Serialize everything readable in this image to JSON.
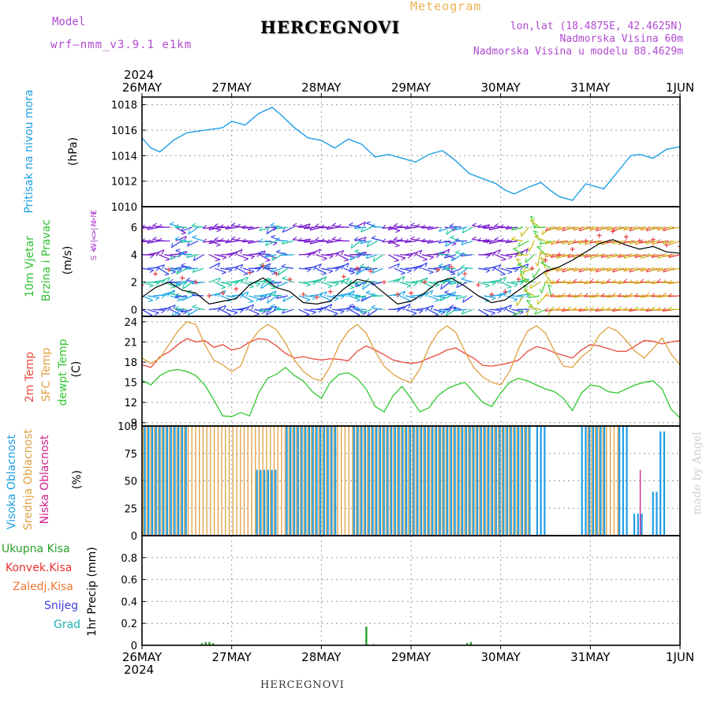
{
  "header": {
    "model_label": "Model",
    "model_name": "wrf–nmm_v3.9.1 e1km",
    "title": "HERCEGNOVI",
    "meteogram": "Meteogram",
    "lonlat": "lon,lat (18.4875E, 42.4625N)",
    "altitude": "Nadmorska Visina 60m",
    "model_altitude": "Nadmorska Visina u modelu 88.4629m"
  },
  "footer": {
    "station": "HERCEGNOVI",
    "credit": "made by Angel"
  },
  "time_axis": {
    "year": "2024",
    "days": [
      "26MAY",
      "27MAY",
      "28MAY",
      "29MAY",
      "30MAY",
      "31MAY",
      "1JUN"
    ]
  },
  "colors": {
    "pressure": "#1e9ee6",
    "wind_speed_line": "#000000",
    "gust_marks": "#e84040",
    "temp2m": "#e84a3c",
    "sfc_temp": "#e0a040",
    "dewpoint": "#30c830",
    "cloud_high": "#1e9ee6",
    "cloud_mid": "#e0a040",
    "cloud_low": "#d0208a",
    "precip_total": "#2aa02a",
    "precip_conv": "#e83030",
    "precip_frozen": "#f07830",
    "precip_snow": "#4040e0",
    "precip_graupel": "#20b0b0"
  },
  "chart_data": [
    {
      "type": "line",
      "panel": "pressure",
      "ylabel": "Pritisak na nivou mora",
      "unit": "(hPa)",
      "ylim": [
        1010,
        1018.6
      ],
      "yticks": [
        1010,
        1012,
        1014,
        1016,
        1018
      ],
      "grid": true,
      "x_days": [
        0,
        0.1,
        0.2,
        0.35,
        0.5,
        0.7,
        0.9,
        1.0,
        1.15,
        1.3,
        1.45,
        1.55,
        1.7,
        1.85,
        2.0,
        2.15,
        2.3,
        2.45,
        2.6,
        2.75,
        2.9,
        3.05,
        3.2,
        3.35,
        3.5,
        3.65,
        3.8,
        3.95,
        4.05,
        4.15,
        4.3,
        4.45,
        4.55,
        4.65,
        4.8,
        4.95,
        5.05,
        5.15,
        5.3,
        5.45,
        5.55,
        5.7,
        5.85,
        6.0
      ],
      "series": [
        {
          "values": [
            1015.4,
            1014.6,
            1014.3,
            1015.2,
            1015.8,
            1016.0,
            1016.2,
            1016.7,
            1016.4,
            1017.3,
            1017.8,
            1017.2,
            1016.2,
            1015.4,
            1015.2,
            1014.6,
            1015.3,
            1014.9,
            1013.9,
            1014.1,
            1013.8,
            1013.5,
            1014.1,
            1014.4,
            1013.6,
            1012.6,
            1012.2,
            1011.8,
            1011.3,
            1011.0,
            1011.5,
            1011.9,
            1011.3,
            1010.8,
            1010.5,
            1011.8,
            1011.6,
            1011.4,
            1012.7,
            1014.0,
            1014.1,
            1013.8,
            1014.5,
            1014.7
          ]
        }
      ]
    },
    {
      "type": "line",
      "panel": "wind",
      "ylabel_lines": [
        "10m Vjetar",
        "Brzina i Pravac"
      ],
      "unit": "(m/s)",
      "compass_lines": [
        "N",
        "W <–|–> E",
        "S <–|–> N"
      ],
      "ylim": [
        -0.5,
        7.5
      ],
      "yticks": [
        0,
        2,
        4,
        6
      ],
      "grid": true,
      "x_days": [
        0,
        0.15,
        0.3,
        0.45,
        0.6,
        0.75,
        0.9,
        1.05,
        1.2,
        1.35,
        1.5,
        1.65,
        1.8,
        1.95,
        2.1,
        2.25,
        2.4,
        2.55,
        2.7,
        2.85,
        3.0,
        3.15,
        3.3,
        3.45,
        3.6,
        3.75,
        3.9,
        4.05,
        4.2,
        4.35,
        4.5,
        4.65,
        4.8,
        4.95,
        5.1,
        5.25,
        5.4,
        5.55,
        5.7,
        5.85,
        6.0
      ],
      "series": [
        {
          "values": [
            0.9,
            1.6,
            2.0,
            1.4,
            1.2,
            0.4,
            0.6,
            0.8,
            1.8,
            2.3,
            1.6,
            1.3,
            0.5,
            0.4,
            0.6,
            1.5,
            2.2,
            2.0,
            1.2,
            0.4,
            0.6,
            1.2,
            2.0,
            2.3,
            1.7,
            1.0,
            0.5,
            0.7,
            1.4,
            2.1,
            2.8,
            3.1,
            3.6,
            4.2,
            4.8,
            5.1,
            4.7,
            4.4,
            4.6,
            4.2,
            4.1
          ]
        },
        {
          "values": [
            1.8,
            2.6,
            2.9,
            2.3,
            2.0,
            1.0,
            1.2,
            1.5,
            2.7,
            3.2,
            2.6,
            2.2,
            1.1,
            0.9,
            1.3,
            2.4,
            3.0,
            2.8,
            2.0,
            1.1,
            1.2,
            2.0,
            2.9,
            3.1,
            2.6,
            1.8,
            1.1,
            1.3,
            2.2,
            3.0,
            3.6,
            4.0,
            4.4,
            5.0,
            5.4,
            5.7,
            5.3,
            5.0,
            5.1,
            4.7,
            4.6
          ]
        }
      ]
    },
    {
      "type": "line",
      "panel": "temperature",
      "ylabel_lines": [
        "2m Temp",
        "SFC Temp",
        "dewpt Temp"
      ],
      "unit": "(C)",
      "ylim": [
        8.5,
        24.8
      ],
      "yticks": [
        9,
        12,
        15,
        18,
        21,
        24
      ],
      "grid": true,
      "x_days": [
        0,
        0.1,
        0.2,
        0.3,
        0.4,
        0.5,
        0.6,
        0.7,
        0.8,
        0.9,
        1.0,
        1.1,
        1.2,
        1.3,
        1.4,
        1.5,
        1.6,
        1.7,
        1.8,
        1.9,
        2.0,
        2.1,
        2.2,
        2.3,
        2.4,
        2.5,
        2.6,
        2.7,
        2.8,
        2.9,
        3.0,
        3.1,
        3.2,
        3.3,
        3.4,
        3.5,
        3.6,
        3.7,
        3.8,
        3.9,
        4.0,
        4.1,
        4.2,
        4.3,
        4.4,
        4.5,
        4.6,
        4.7,
        4.8,
        4.9,
        5.0,
        5.1,
        5.2,
        5.3,
        5.4,
        5.5,
        5.6,
        5.7,
        5.8,
        5.9,
        6.0
      ],
      "series": [
        {
          "name": "2m Temp",
          "values": [
            17.6,
            17.2,
            18.8,
            19.5,
            20.6,
            21.5,
            21.0,
            21.2,
            20.2,
            20.6,
            19.8,
            20.1,
            21.0,
            21.5,
            21.3,
            20.4,
            19.3,
            18.6,
            18.8,
            18.5,
            18.3,
            18.5,
            18.4,
            18.2,
            19.6,
            20.4,
            19.8,
            19.1,
            18.3,
            18.0,
            17.8,
            18.0,
            18.6,
            19.1,
            19.8,
            20.1,
            19.3,
            18.6,
            17.5,
            17.4,
            17.6,
            17.9,
            18.3,
            19.6,
            20.3,
            20.0,
            19.4,
            19.0,
            18.6,
            19.8,
            20.6,
            20.4,
            20.0,
            19.6,
            19.6,
            20.4,
            21.2,
            21.1,
            20.7,
            21.0,
            21.2
          ]
        },
        {
          "name": "SFC Temp",
          "values": [
            18.6,
            17.8,
            18.6,
            20.6,
            22.6,
            24.0,
            23.6,
            20.6,
            18.3,
            17.6,
            16.6,
            17.4,
            20.8,
            22.6,
            23.6,
            22.8,
            20.8,
            18.3,
            16.6,
            15.6,
            15.2,
            17.4,
            20.6,
            22.6,
            23.6,
            22.3,
            19.6,
            17.4,
            16.2,
            15.4,
            15.0,
            17.0,
            20.2,
            22.4,
            23.4,
            22.4,
            19.6,
            17.2,
            15.8,
            15.0,
            14.6,
            16.6,
            20.0,
            22.6,
            23.4,
            22.3,
            19.6,
            17.4,
            17.2,
            18.8,
            19.8,
            22.0,
            23.2,
            22.6,
            21.2,
            19.6,
            18.6,
            20.0,
            21.6,
            19.2,
            17.6
          ]
        },
        {
          "name": "dewpt Temp",
          "values": [
            15.3,
            14.6,
            16.0,
            16.7,
            16.9,
            16.6,
            16.0,
            14.6,
            12.4,
            10.0,
            9.9,
            10.5,
            10.0,
            13.4,
            15.6,
            16.2,
            17.2,
            16.0,
            15.2,
            13.6,
            12.6,
            15.0,
            16.2,
            16.4,
            15.6,
            14.0,
            11.4,
            10.6,
            13.0,
            14.4,
            12.6,
            10.6,
            11.2,
            13.0,
            14.0,
            14.6,
            15.0,
            13.5,
            12.0,
            11.4,
            13.4,
            15.0,
            15.6,
            15.2,
            14.6,
            14.0,
            13.6,
            12.6,
            10.8,
            13.4,
            14.6,
            14.4,
            13.6,
            13.4,
            14.0,
            14.6,
            15.0,
            15.2,
            14.0,
            11.0,
            9.7
          ]
        }
      ]
    },
    {
      "type": "bar",
      "panel": "cloud",
      "ylabel_lines": [
        "Visoka Oblacnost",
        "Srednja Oblacnost",
        "Niska Oblacnost"
      ],
      "unit": "(%)",
      "ylim": [
        0,
        100
      ],
      "yticks": [
        0,
        25,
        50,
        75,
        100
      ],
      "grid": true,
      "dt_hours": 1,
      "series": [
        {
          "name": "Visoka Oblacnost",
          "segments": [
            {
              "start_h": 0,
              "end_h": 12,
              "value": 100
            },
            {
              "start_h": 30,
              "end_h": 36,
              "value": 60
            },
            {
              "start_h": 38,
              "end_h": 52,
              "value": 100
            },
            {
              "start_h": 56,
              "end_h": 104,
              "value": 100
            },
            {
              "start_h": 105,
              "end_h": 108,
              "value": 100
            },
            {
              "start_h": 117,
              "end_h": 124,
              "value": 100
            },
            {
              "start_h": 127,
              "end_h": 130,
              "value": 100
            },
            {
              "start_h": 131,
              "end_h": 134,
              "value": 20
            },
            {
              "start_h": 136,
              "end_h": 138,
              "value": 40
            },
            {
              "start_h": 138,
              "end_h": 140,
              "value": 95
            }
          ]
        },
        {
          "name": "Srednja Oblacnost",
          "segments": [
            {
              "start_h": 0,
              "end_h": 38,
              "value": 100
            },
            {
              "start_h": 38,
              "end_h": 52,
              "value": 100
            },
            {
              "start_h": 52,
              "end_h": 56,
              "value": 100
            },
            {
              "start_h": 56,
              "end_h": 104,
              "value": 100
            },
            {
              "start_h": 119,
              "end_h": 128,
              "value": 100
            }
          ]
        },
        {
          "name": "Niska Oblacnost",
          "segments": [
            {
              "start_h": 133,
              "end_h": 134,
              "value": 60
            }
          ]
        }
      ]
    },
    {
      "type": "bar",
      "panel": "precipitation",
      "ylabel": "1hr Precip",
      "unit": "(mm)",
      "ylim": [
        0,
        1.0
      ],
      "yticks": [
        0,
        0.2,
        0.4,
        0.6,
        0.8
      ],
      "grid": true,
      "legend": [
        "Ukupna Kisa",
        "Konvek.Kisa",
        "Zaledj.Kisa",
        "Snijeg",
        "Grad"
      ],
      "series": [
        {
          "name": "Ukupna Kisa",
          "points": [
            {
              "h": 16,
              "v": 0.02
            },
            {
              "h": 17,
              "v": 0.03
            },
            {
              "h": 18,
              "v": 0.03
            },
            {
              "h": 19,
              "v": 0.02
            },
            {
              "h": 60,
              "v": 0.17
            },
            {
              "h": 62,
              "v": 0.01
            },
            {
              "h": 87,
              "v": 0.02
            },
            {
              "h": 88,
              "v": 0.03
            }
          ]
        }
      ]
    }
  ]
}
